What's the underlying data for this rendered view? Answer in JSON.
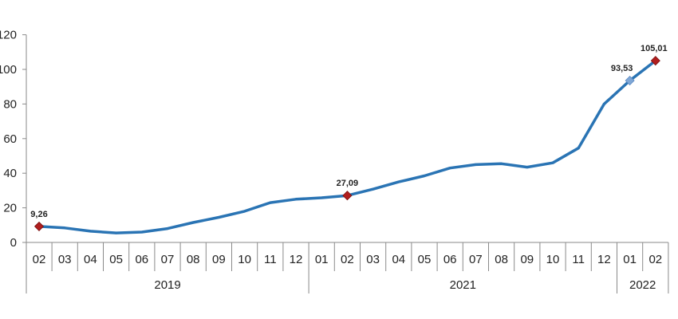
{
  "chart_data": {
    "type": "line",
    "title": "",
    "xlabel": "",
    "ylabel": "",
    "ylim": [
      0,
      120
    ],
    "y_ticks": [
      "0",
      "20",
      "40",
      "60",
      "80",
      "100",
      "120"
    ],
    "grid": false,
    "legend": "none",
    "colors": {
      "line": "#2a74b4",
      "marker_highlight": "#b01e1e",
      "marker_alt": "#7fa7d6",
      "axis": "#8a8a8a",
      "text": "#222222"
    },
    "x": [
      "2019-02",
      "2019-03",
      "2019-04",
      "2019-05",
      "2019-06",
      "2019-07",
      "2019-08",
      "2019-09",
      "2019-10",
      "2019-11",
      "2019-12",
      "2021-01",
      "2021-02",
      "2021-03",
      "2021-04",
      "2021-05",
      "2021-06",
      "2021-07",
      "2021-08",
      "2021-09",
      "2021-10",
      "2021-11",
      "2021-12",
      "2022-01",
      "2022-02"
    ],
    "x_tick_labels": [
      "02",
      "03",
      "04",
      "05",
      "06",
      "07",
      "08",
      "09",
      "10",
      "11",
      "12",
      "01",
      "02",
      "03",
      "04",
      "05",
      "06",
      "07",
      "08",
      "09",
      "10",
      "11",
      "12",
      "01",
      "02"
    ],
    "year_groups": [
      {
        "label": "2019",
        "count": 11
      },
      {
        "label": "2021",
        "count": 12
      },
      {
        "label": "2022",
        "count": 2
      }
    ],
    "series": [
      {
        "values": [
          9.26,
          8.4,
          6.5,
          5.5,
          6.0,
          8.0,
          11.5,
          14.5,
          18.0,
          23.0,
          25.0,
          25.8,
          27.09,
          30.8,
          35.0,
          38.5,
          43.0,
          45.0,
          45.5,
          43.5,
          46.0,
          54.5,
          80.0,
          93.53,
          105.01
        ]
      }
    ],
    "annotations": [
      {
        "index": 0,
        "text": "9,26",
        "marker": "highlight"
      },
      {
        "index": 12,
        "text": "27,09",
        "marker": "highlight"
      },
      {
        "index": 23,
        "text": "93,53",
        "marker": "alt"
      },
      {
        "index": 24,
        "text": "105,01",
        "marker": "highlight"
      }
    ]
  }
}
